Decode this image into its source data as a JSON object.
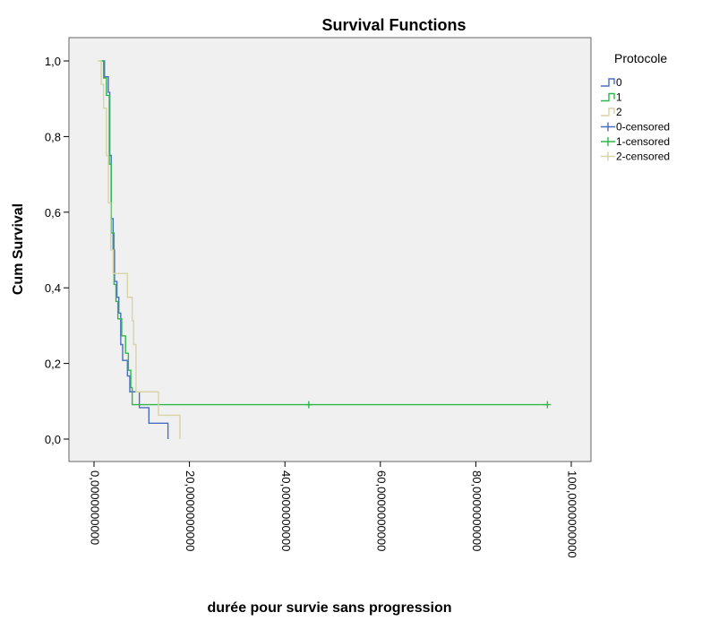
{
  "chart_data": {
    "type": "line",
    "title": "Survival Functions",
    "xlabel": "durée pour survie sans progression",
    "ylabel": "Cum Survival",
    "xlim": [
      -5,
      105
    ],
    "ylim": [
      -0.05,
      1.07
    ],
    "x_ticks": [
      0,
      20,
      40,
      60,
      80,
      100
    ],
    "x_tick_labels": [
      "0,0000000000",
      "20,0000000000",
      "40,0000000000",
      "60,0000000000",
      "80,0000000000",
      "100,0000000000"
    ],
    "y_ticks": [
      0.0,
      0.2,
      0.4,
      0.6,
      0.8,
      1.0
    ],
    "y_tick_labels": [
      "0,0",
      "0,2",
      "0,4",
      "0,6",
      "0,8",
      "1,0"
    ],
    "grid": false,
    "legend_title": "Protocole",
    "legend_position": "right",
    "background": "#f0f0f0",
    "series": [
      {
        "name": "0",
        "color": "#4a6ec1",
        "steps": [
          [
            1.8,
            1.0
          ],
          [
            2.2,
            0.958
          ],
          [
            3.0,
            0.917
          ],
          [
            3.3,
            0.75
          ],
          [
            3.6,
            0.583
          ],
          [
            4.0,
            0.5
          ],
          [
            4.3,
            0.417
          ],
          [
            4.8,
            0.375
          ],
          [
            5.2,
            0.333
          ],
          [
            5.6,
            0.25
          ],
          [
            6.0,
            0.208
          ],
          [
            7.0,
            0.167
          ],
          [
            7.5,
            0.125
          ],
          [
            9.5,
            0.083
          ],
          [
            11.5,
            0.042
          ],
          [
            15.5,
            0.0
          ]
        ],
        "censored": []
      },
      {
        "name": "1",
        "color": "#2fb84a",
        "steps": [
          [
            1.2,
            1.0
          ],
          [
            2.0,
            0.955
          ],
          [
            2.6,
            0.909
          ],
          [
            3.2,
            0.727
          ],
          [
            3.6,
            0.545
          ],
          [
            4.2,
            0.409
          ],
          [
            4.6,
            0.364
          ],
          [
            5.0,
            0.318
          ],
          [
            5.8,
            0.273
          ],
          [
            6.6,
            0.227
          ],
          [
            7.2,
            0.182
          ],
          [
            7.7,
            0.136
          ],
          [
            8.0,
            0.091
          ]
        ],
        "end_x": 95.0,
        "censored": [
          [
            45.0,
            0.091
          ],
          [
            95.0,
            0.091
          ]
        ]
      },
      {
        "name": "2",
        "color": "#d8d4a6",
        "steps": [
          [
            0.8,
            1.0
          ],
          [
            1.5,
            0.938
          ],
          [
            2.0,
            0.875
          ],
          [
            2.6,
            0.75
          ],
          [
            3.0,
            0.625
          ],
          [
            3.5,
            0.5
          ],
          [
            4.0,
            0.438
          ],
          [
            7.0,
            0.375
          ],
          [
            8.0,
            0.313
          ],
          [
            8.3,
            0.25
          ],
          [
            8.8,
            0.125
          ],
          [
            13.5,
            0.063
          ],
          [
            18.0,
            0.0
          ]
        ],
        "censored": []
      }
    ],
    "legend_entries": [
      "0",
      "1",
      "2",
      "0-censored",
      "1-censored",
      "2-censored"
    ]
  }
}
